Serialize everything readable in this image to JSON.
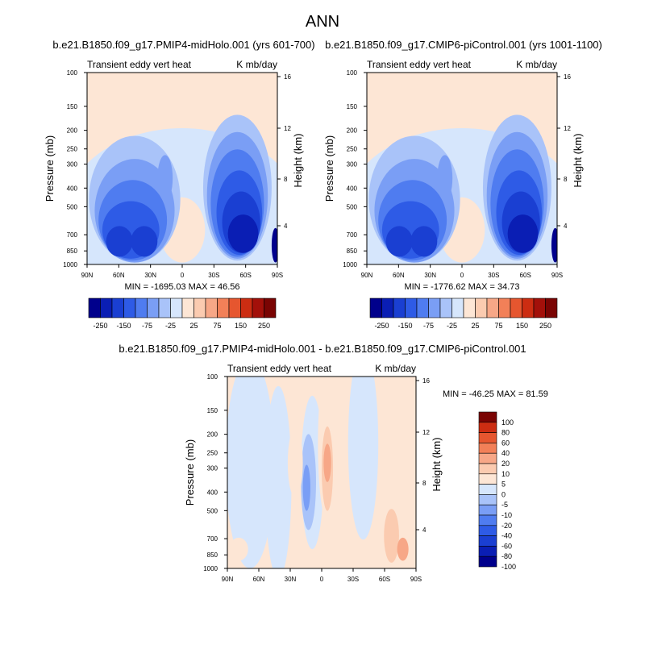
{
  "figure_title": "ANN",
  "colors": {
    "main": [
      "#00008c",
      "#0a1eb4",
      "#1a3fd2",
      "#2e5be6",
      "#4f7cf0",
      "#7a9ef5",
      "#a9c3f9",
      "#d6e6fc",
      "#fde6d5",
      "#fbcbb0",
      "#f7a787",
      "#f28058",
      "#e6562f",
      "#cc2d12",
      "#a3100a",
      "#7a0403"
    ],
    "diff": [
      "#00008c",
      "#0a1eb4",
      "#1a3fd2",
      "#2e5be6",
      "#4f7cf0",
      "#7a9ef5",
      "#a9c3f9",
      "#d6e6fc",
      "#fde6d5",
      "#fbcbb0",
      "#f7a787",
      "#f28058",
      "#e6562f",
      "#cc2d12",
      "#7a0403"
    ]
  },
  "chart_data": [
    {
      "type": "heatmap",
      "title": "b.e21.B1850.f09_g17.PMIP4-midHolo.001 (yrs 601-700)",
      "left_string": "Transient eddy vert heat",
      "right_string": "K mb/day",
      "ylabel": "Pressure (mb)",
      "y2label": "Height (km)",
      "x_ticks": [
        "90N",
        "60N",
        "30N",
        "0",
        "30S",
        "60S",
        "90S"
      ],
      "y_ticks": [
        "100",
        "150",
        "200",
        "250",
        "300",
        "400",
        "500",
        "700",
        "850",
        "1000"
      ],
      "y2_ticks": [
        "16",
        "12",
        "8",
        "4"
      ],
      "stats": "MIN = -1695.03  MAX = 46.56",
      "colorbar_labels": [
        "-250",
        "-150",
        "-75",
        "-25",
        "25",
        "75",
        "150",
        "250"
      ]
    },
    {
      "type": "heatmap",
      "title": "b.e21.B1850.f09_g17.CMIP6-piControl.001 (yrs 1001-1100)",
      "left_string": "Transient eddy vert heat",
      "right_string": "K mb/day",
      "ylabel": "Pressure (mb)",
      "y2label": "Height (km)",
      "x_ticks": [
        "90N",
        "60N",
        "30N",
        "0",
        "30S",
        "60S",
        "90S"
      ],
      "y_ticks": [
        "100",
        "150",
        "200",
        "250",
        "300",
        "400",
        "500",
        "700",
        "850",
        "1000"
      ],
      "y2_ticks": [
        "16",
        "12",
        "8",
        "4"
      ],
      "stats": "MIN = -1776.62  MAX = 34.73",
      "colorbar_labels": [
        "-250",
        "-150",
        "-75",
        "-25",
        "25",
        "75",
        "150",
        "250"
      ]
    },
    {
      "type": "heatmap",
      "title": "b.e21.B1850.f09_g17.PMIP4-midHolo.001 - b.e21.B1850.f09_g17.CMIP6-piControl.001",
      "left_string": "Transient eddy vert heat",
      "right_string": "K mb/day",
      "ylabel": "Pressure (mb)",
      "y2label": "Height (km)",
      "x_ticks": [
        "90N",
        "60N",
        "30N",
        "0",
        "30S",
        "60S",
        "90S"
      ],
      "y_ticks": [
        "100",
        "150",
        "200",
        "250",
        "300",
        "400",
        "500",
        "700",
        "850",
        "1000"
      ],
      "y2_ticks": [
        "16",
        "12",
        "8",
        "4"
      ],
      "stats": "MIN = -46.25  MAX =  81.59",
      "colorbar_labels": [
        "100",
        "80",
        "60",
        "40",
        "20",
        "10",
        "5",
        "0",
        "-5",
        "-10",
        "-20",
        "-40",
        "-60",
        "-80",
        "-100"
      ]
    }
  ]
}
